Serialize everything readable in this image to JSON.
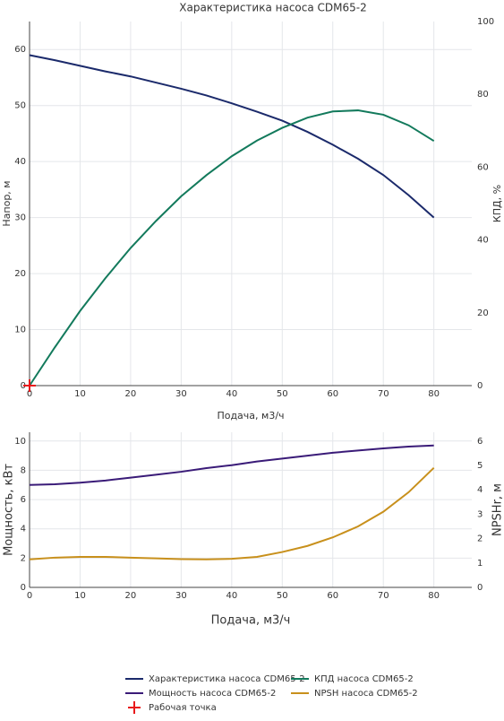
{
  "chart_data": [
    {
      "type": "line",
      "title": "Характеристика насоса CDM65-2",
      "x_label": "Подача, м3/ч",
      "y_label": "Напор, м",
      "y2_label": "КПД, %",
      "xlim": [
        0,
        87.5
      ],
      "xticks": [
        0,
        10,
        20,
        30,
        40,
        50,
        60,
        70,
        80
      ],
      "ylim": [
        0,
        65
      ],
      "yticks": [
        0,
        10,
        20,
        30,
        40,
        50,
        60
      ],
      "y2lim": [
        0,
        100
      ],
      "y2ticks": [
        0,
        20,
        40,
        60,
        80,
        100
      ],
      "grid": true,
      "x": [
        0,
        5,
        10,
        15,
        20,
        25,
        30,
        35,
        40,
        45,
        50,
        55,
        60,
        65,
        70,
        75,
        80
      ],
      "series": [
        {
          "name": "Характеристика насоса CDM65-2",
          "color": "#1b2a6b",
          "values": [
            59,
            58.1,
            57.1,
            56.1,
            55.2,
            54.1,
            53,
            51.8,
            50.4,
            48.9,
            47.3,
            45.3,
            43,
            40.5,
            37.6,
            34,
            30
          ]
        },
        {
          "name": "КПД насоса CDM65-2",
          "color": "#137a5c",
          "axis": "y2",
          "values": [
            0,
            10.5,
            20.5,
            29.5,
            37.8,
            45.2,
            52,
            57.8,
            63,
            67.3,
            70.8,
            73.6,
            75.3,
            75.6,
            74.4,
            71.5,
            67.2
          ]
        },
        {
          "name": "Рабочая точка",
          "color": "#e8191b",
          "marker": "cross",
          "x": [
            0
          ],
          "values": [
            0
          ]
        }
      ]
    },
    {
      "type": "line",
      "x_label": "Подача, м3/ч",
      "y_label": "Мощность, кВт",
      "y2_label": "NPSHr, м",
      "xlim": [
        0,
        87.5
      ],
      "xticks": [
        0,
        10,
        20,
        30,
        40,
        50,
        60,
        70,
        80
      ],
      "ylim": [
        0,
        10.6
      ],
      "yticks": [
        0,
        2,
        4,
        6,
        8,
        10
      ],
      "y2lim": [
        0,
        6.36
      ],
      "y2ticks": [
        0,
        1,
        2,
        3,
        4,
        5,
        6
      ],
      "grid": true,
      "x": [
        0,
        5,
        10,
        15,
        20,
        25,
        30,
        35,
        40,
        45,
        50,
        55,
        60,
        65,
        70,
        75,
        80
      ],
      "series": [
        {
          "name": "Мощность насоса CDM65-2",
          "color": "#3a1b78",
          "values": [
            7.0,
            7.05,
            7.15,
            7.3,
            7.5,
            7.7,
            7.9,
            8.15,
            8.35,
            8.6,
            8.8,
            9.0,
            9.2,
            9.35,
            9.5,
            9.62,
            9.7
          ]
        },
        {
          "name": "NPSH насоса CDM65-2",
          "color": "#c8901c",
          "axis": "y2",
          "values": [
            1.15,
            1.22,
            1.25,
            1.25,
            1.22,
            1.19,
            1.16,
            1.15,
            1.17,
            1.25,
            1.45,
            1.7,
            2.05,
            2.5,
            3.1,
            3.9,
            4.9
          ]
        }
      ]
    }
  ]
}
